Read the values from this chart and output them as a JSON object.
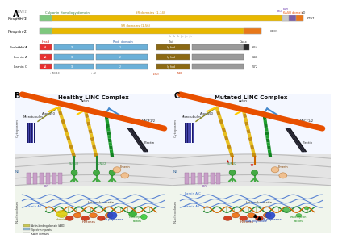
{
  "background": "#ffffff",
  "panel_B_title": "Healthy LINC Complex",
  "panel_C_title": "Mutated LINC Complex",
  "nesprin1_label": "Nesprin-1",
  "nesprin2_label": "Nesprin-2",
  "prelamin_label": "Prelamin A",
  "laminA_label": "Lamin A",
  "laminC_label": "Lamin C",
  "calponin_text": "Calponin Homology domain",
  "SR_text1": "SR domains (1-74)",
  "SR_text2": "SR domains (1-56)",
  "KASH_text": "KASH domain",
  "head_text": "Head",
  "rod_text": "Rod  domain",
  "tail_text": "Tail",
  "nesprin_green": "#7dc87d",
  "nesprin_bar": "#e8b800",
  "nesprin_gray": "#c8c8c8",
  "nesprin_purple": "#7b5ea7",
  "nesprin_orange": "#e8781a",
  "lamin_red": "#e83030",
  "lamin_blue": "#6bb0d8",
  "lamin_brown": "#8b6914",
  "lamin_gray": "#9a9a9a",
  "lamin_black": "#2a2a2a",
  "legend_items": [
    {
      "label": "Actin-binding domain (ABD)",
      "color": "#c8c850"
    },
    {
      "label": "Spectrin repeats",
      "color": "#8bbddd"
    },
    {
      "label": "KASH domains",
      "color": "#e8a870"
    }
  ]
}
